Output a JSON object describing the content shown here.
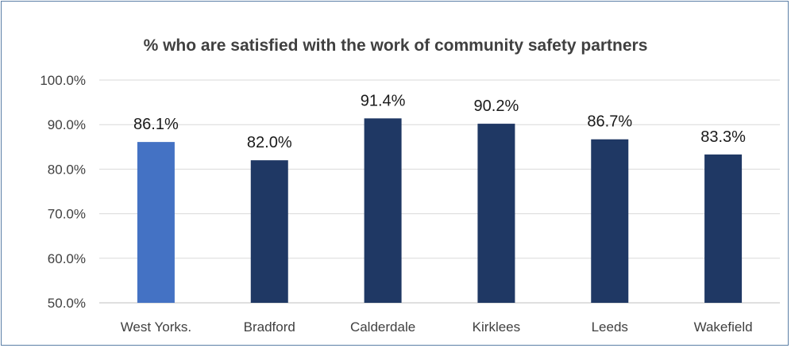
{
  "chart_data": {
    "type": "bar",
    "title": "% who are satisfied with the work of community safety partners",
    "categories": [
      "West Yorks.",
      "Bradford",
      "Calderdale",
      "Kirklees",
      "Leeds",
      "Wakefield"
    ],
    "values": [
      86.1,
      82.0,
      91.4,
      90.2,
      86.7,
      83.3
    ],
    "data_labels": [
      "86.1%",
      "82.0%",
      "91.4%",
      "90.2%",
      "86.7%",
      "83.3%"
    ],
    "ylim": [
      50,
      100
    ],
    "yticks": [
      50,
      60,
      70,
      80,
      90,
      100
    ],
    "ytick_labels": [
      "50.0%",
      "60.0%",
      "70.0%",
      "80.0%",
      "90.0%",
      "100.0%"
    ],
    "grid": true,
    "legend": "none",
    "colors": {
      "highlight": "#4472c4",
      "bar": "#1f3864"
    },
    "highlight_index": 0
  }
}
